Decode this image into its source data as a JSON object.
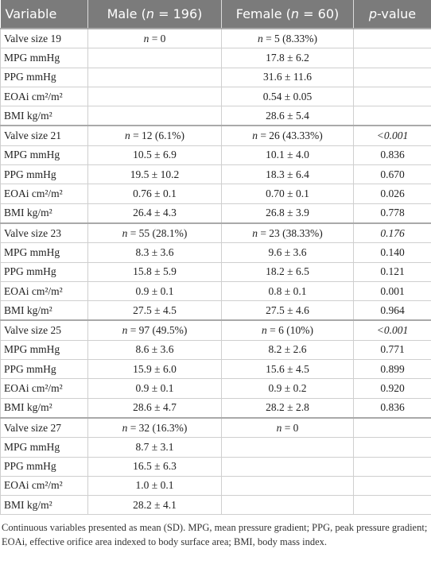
{
  "table": {
    "header": [
      "Variable",
      "Male (n = 196)",
      "Female (n = 60)",
      "p-value"
    ],
    "rows": [
      [
        "Valve size 19",
        "n = 0",
        "n = 5 (8.33%)",
        null
      ],
      [
        "MPG mmHg",
        null,
        "17.8 ± 6.2",
        null
      ],
      [
        "PPG mmHg",
        null,
        "31.6 ± 11.6",
        null
      ],
      [
        "EOAi cm²/m²",
        null,
        "0.54 ± 0.05",
        null
      ],
      [
        "BMI kg/m²",
        null,
        "28.6 ± 5.4",
        null
      ],
      [
        "Valve size 21",
        "n = 12 (6.1%)",
        "n = 26 (43.33%)",
        "<0.001"
      ],
      [
        "MPG mmHg",
        "10.5 ± 6.9",
        "10.1 ± 4.0",
        "0.836"
      ],
      [
        "PPG mmHg",
        "19.5 ± 10.2",
        "18.3 ± 6.4",
        "0.670"
      ],
      [
        "EOAi cm²/m²",
        "0.76 ± 0.1",
        "0.70 ± 0.1",
        "0.026"
      ],
      [
        "BMI kg/m²",
        "26.4 ± 4.3",
        "26.8 ± 3.9",
        "0.778"
      ],
      [
        "Valve size 23",
        "n = 55 (28.1%)",
        "n = 23 (38.33%)",
        "0.176"
      ],
      [
        "MPG mmHg",
        "8.3 ± 3.6",
        "9.6 ± 3.6",
        "0.140"
      ],
      [
        "PPG mmHg",
        "15.8 ± 5.9",
        "18.2 ± 6.5",
        "0.121"
      ],
      [
        "EOAi cm²/m²",
        "0.9 ± 0.1",
        "0.8 ± 0.1",
        "0.001"
      ],
      [
        "BMI kg/m²",
        "27.5 ± 4.5",
        "27.5 ± 4.6",
        "0.964"
      ],
      [
        "Valve size 25",
        "n = 97 (49.5%)",
        "n = 6 (10%)",
        "<0.001"
      ],
      [
        "MPG mmHg",
        "8.6 ± 3.6",
        "8.2 ± 2.6",
        "0.771"
      ],
      [
        "PPG mmHg",
        "15.9 ± 6.0",
        "15.6 ± 4.5",
        "0.899"
      ],
      [
        "EOAi cm²/m²",
        "0.9 ± 0.1",
        "0.9 ± 0.2",
        "0.920"
      ],
      [
        "BMI kg/m²",
        "28.6 ± 4.7",
        "28.2 ± 2.8",
        "0.836"
      ],
      [
        "Valve size 27",
        "n = 32 (16.3%)",
        "n = 0",
        null
      ],
      [
        "MPG mmHg",
        "8.7 ± 3.1",
        null,
        null
      ],
      [
        "PPG mmHg",
        "16.5 ± 6.3",
        null,
        null
      ],
      [
        "EOAi cm²/m²",
        "1.0 ± 0.1",
        null,
        null
      ],
      [
        "BMI kg/m²",
        "28.2 ± 4.1",
        null,
        null
      ]
    ]
  },
  "footnote": "Continuous variables presented as mean (SD). MPG, mean pressure gradient; PPG, peak pressure gradient; EOAi, effective orifice area indexed to body surface area; BMI, body mass index."
}
